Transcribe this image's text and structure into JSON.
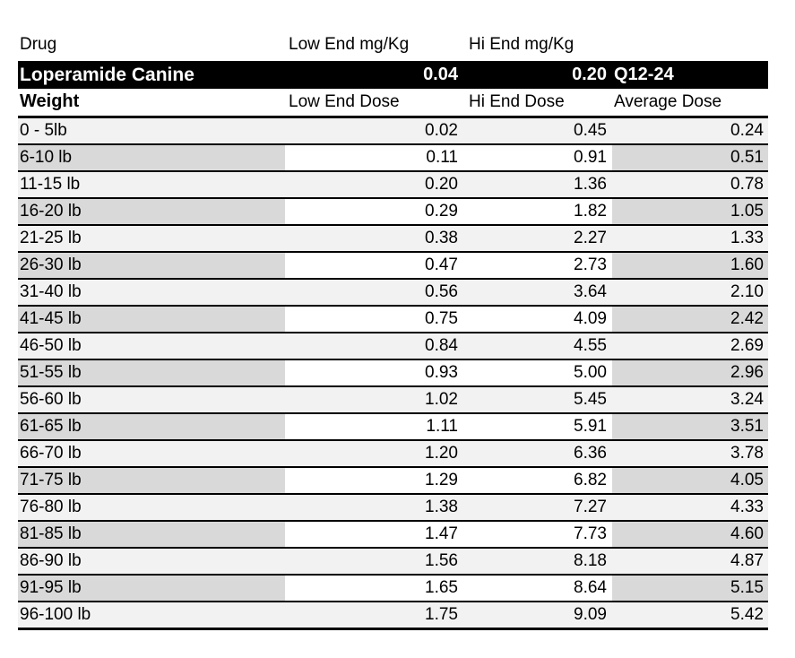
{
  "chart_data": {
    "type": "table",
    "drug_header": {
      "drug_label": "Drug",
      "low_label": "Low End mg/Kg",
      "hi_label": "Hi End mg/Kg"
    },
    "drug_row": {
      "drug": "Loperamide Canine",
      "low_mg_kg": "0.04",
      "hi_mg_kg": "0.20",
      "frequency": "Q12-24"
    },
    "dose_columns": [
      "Weight",
      "Low End Dose",
      "Hi End Dose",
      "Average Dose"
    ],
    "rows": [
      {
        "weight": "0 - 5lb",
        "low": "0.02",
        "hi": "0.45",
        "avg": "0.24"
      },
      {
        "weight": "6-10 lb",
        "low": "0.11",
        "hi": "0.91",
        "avg": "0.51"
      },
      {
        "weight": "11-15 lb",
        "low": "0.20",
        "hi": "1.36",
        "avg": "0.78"
      },
      {
        "weight": "16-20 lb",
        "low": "0.29",
        "hi": "1.82",
        "avg": "1.05"
      },
      {
        "weight": "21-25 lb",
        "low": "0.38",
        "hi": "2.27",
        "avg": "1.33"
      },
      {
        "weight": "26-30 lb",
        "low": "0.47",
        "hi": "2.73",
        "avg": "1.60"
      },
      {
        "weight": "31-40 lb",
        "low": "0.56",
        "hi": "3.64",
        "avg": "2.10"
      },
      {
        "weight": "41-45 lb",
        "low": "0.75",
        "hi": "4.09",
        "avg": "2.42"
      },
      {
        "weight": "46-50 lb",
        "low": "0.84",
        "hi": "4.55",
        "avg": "2.69"
      },
      {
        "weight": "51-55 lb",
        "low": "0.93",
        "hi": "5.00",
        "avg": "2.96"
      },
      {
        "weight": "56-60 lb",
        "low": "1.02",
        "hi": "5.45",
        "avg": "3.24"
      },
      {
        "weight": "61-65 lb",
        "low": "1.11",
        "hi": "5.91",
        "avg": "3.51"
      },
      {
        "weight": "66-70 lb",
        "low": "1.20",
        "hi": "6.36",
        "avg": "3.78"
      },
      {
        "weight": "71-75 lb",
        "low": "1.29",
        "hi": "6.82",
        "avg": "4.05"
      },
      {
        "weight": "76-80 lb",
        "low": "1.38",
        "hi": "7.27",
        "avg": "4.33"
      },
      {
        "weight": "81-85 lb",
        "low": "1.47",
        "hi": "7.73",
        "avg": "4.60"
      },
      {
        "weight": "86-90 lb",
        "low": "1.56",
        "hi": "8.18",
        "avg": "4.87"
      },
      {
        "weight": "91-95 lb",
        "low": "1.65",
        "hi": "8.64",
        "avg": "5.15"
      },
      {
        "weight": "96-100 lb",
        "low": "1.75",
        "hi": "9.09",
        "avg": "5.42"
      }
    ]
  },
  "colors": {
    "row_light": "#F2F2F2",
    "row_alt_gray": "#D9D9D9",
    "band_background": "#000000",
    "band_text": "#FFFFFF",
    "border": "#000000"
  }
}
